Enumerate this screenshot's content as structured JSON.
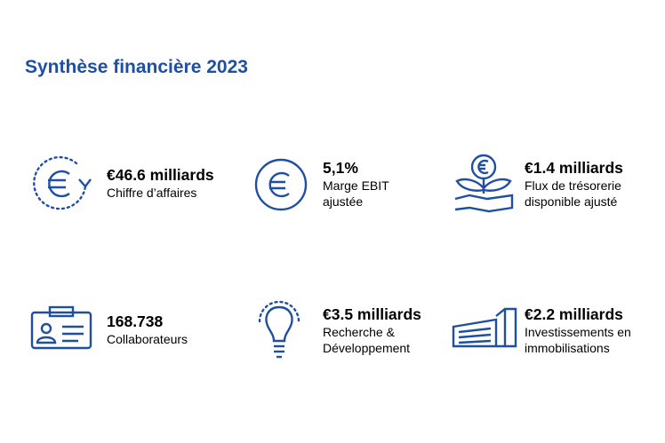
{
  "title": "Synthèse financière 2023",
  "items": [
    {
      "value": "€46.6 milliards",
      "label": [
        "Chiffre d’affaires"
      ]
    },
    {
      "value": "5,1%",
      "label": [
        "Marge EBIT",
        "ajustée"
      ]
    },
    {
      "value": "€1.4 milliards",
      "label": [
        "Flux de trésorerie",
        "disponible ajusté"
      ]
    },
    {
      "value": "168.738",
      "label": [
        "Collaborateurs"
      ]
    },
    {
      "value": "€3.5 milliards",
      "label": [
        "Recherche &",
        "Développement"
      ]
    },
    {
      "value": "€2.2 milliards",
      "label": [
        "Investissements en",
        "immobilisations"
      ]
    }
  ]
}
